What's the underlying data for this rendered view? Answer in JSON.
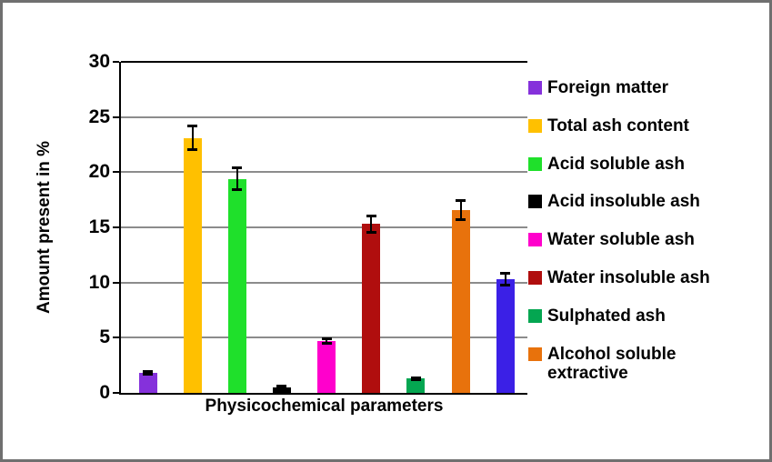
{
  "frame": {
    "background": "#ffffff",
    "border_color": "#6f6f6f"
  },
  "chart_data": {
    "type": "bar",
    "title": "",
    "xlabel": "Physicochemical parameters",
    "ylabel": "Amount present in %",
    "ylim": [
      0,
      30
    ],
    "yticks": [
      0,
      5,
      10,
      15,
      20,
      25,
      30
    ],
    "grid": "horizontal",
    "gridline_color": "#8c8c8c",
    "axis_color": "#000000",
    "error_bar_color": "#000000",
    "legend_position": "right",
    "series": [
      {
        "label": "Foreign matter",
        "color": "#8531DB",
        "value": 1.8,
        "error": 0.15,
        "in_legend": true
      },
      {
        "label": "Total ash content",
        "color": "#FFC000",
        "value": 23.1,
        "error": 1.1,
        "in_legend": true
      },
      {
        "label": "Acid soluble ash",
        "color": "#1FE02B",
        "value": 19.4,
        "error": 1.0,
        "in_legend": true
      },
      {
        "label": "Acid insoluble ash",
        "color": "#000000",
        "value": 0.5,
        "error": 0.15,
        "in_legend": true
      },
      {
        "label": "Water soluble ash",
        "color": "#FF00CC",
        "value": 4.7,
        "error": 0.25,
        "in_legend": true
      },
      {
        "label": "Water insoluble ash",
        "color": "#B00E0E",
        "value": 15.3,
        "error": 0.8,
        "in_legend": true
      },
      {
        "label": "Sulphated ash",
        "color": "#04A651",
        "value": 1.3,
        "error": 0.12,
        "in_legend": true
      },
      {
        "label": "Alcohol soluble extractive",
        "color": "#E8720C",
        "value": 16.6,
        "error": 0.9,
        "in_legend": true
      },
      {
        "label": "",
        "color": "#3B20E6",
        "value": 10.3,
        "error": 0.6,
        "in_legend": false
      }
    ]
  }
}
